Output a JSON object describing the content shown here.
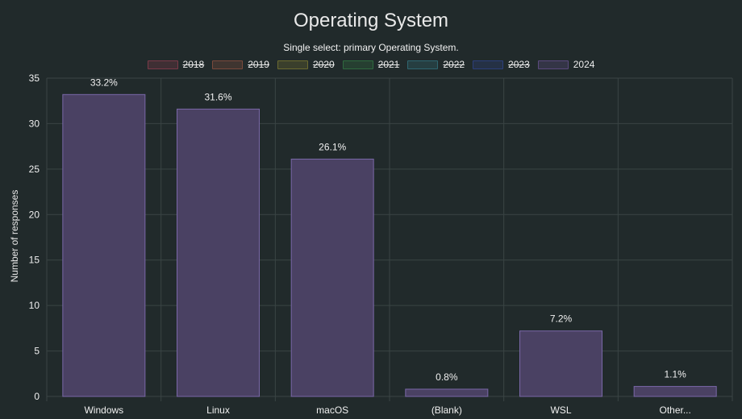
{
  "chart_data": {
    "type": "bar",
    "title": "Operating System",
    "subtitle": "Single select: primary Operating System.",
    "ylabel": "Number of responses",
    "xlabel": "",
    "categories": [
      "Windows",
      "Linux",
      "macOS",
      "(Blank)",
      "WSL",
      "Other..."
    ],
    "series": [
      {
        "name": "2024",
        "values": [
          33.2,
          31.6,
          26.1,
          0.8,
          7.2,
          1.1
        ],
        "labels": [
          "33.2%",
          "31.6%",
          "26.1%",
          "0.8%",
          "7.2%",
          "1.1%"
        ]
      }
    ],
    "ylim": [
      0,
      35
    ],
    "yticks": [
      "0",
      "5",
      "10",
      "15",
      "20",
      "25",
      "30",
      "35"
    ],
    "grid": true,
    "legend_position": "top",
    "legend": [
      {
        "label": "2018",
        "hidden": true,
        "color": "#7a3a48"
      },
      {
        "label": "2019",
        "hidden": true,
        "color": "#7a4a3c"
      },
      {
        "label": "2020",
        "hidden": true,
        "color": "#6b6a30"
      },
      {
        "label": "2021",
        "hidden": true,
        "color": "#2f6a3f"
      },
      {
        "label": "2022",
        "hidden": true,
        "color": "#2f6670"
      },
      {
        "label": "2023",
        "hidden": true,
        "color": "#2c3f7a"
      },
      {
        "label": "2024",
        "hidden": false,
        "color": "#5b4a7e"
      }
    ],
    "colors": {
      "bar_fill": "#4a4163",
      "bar_stroke": "#7a68a8",
      "grid": "#3a4444",
      "axis_text": "#f0f0f0"
    }
  }
}
